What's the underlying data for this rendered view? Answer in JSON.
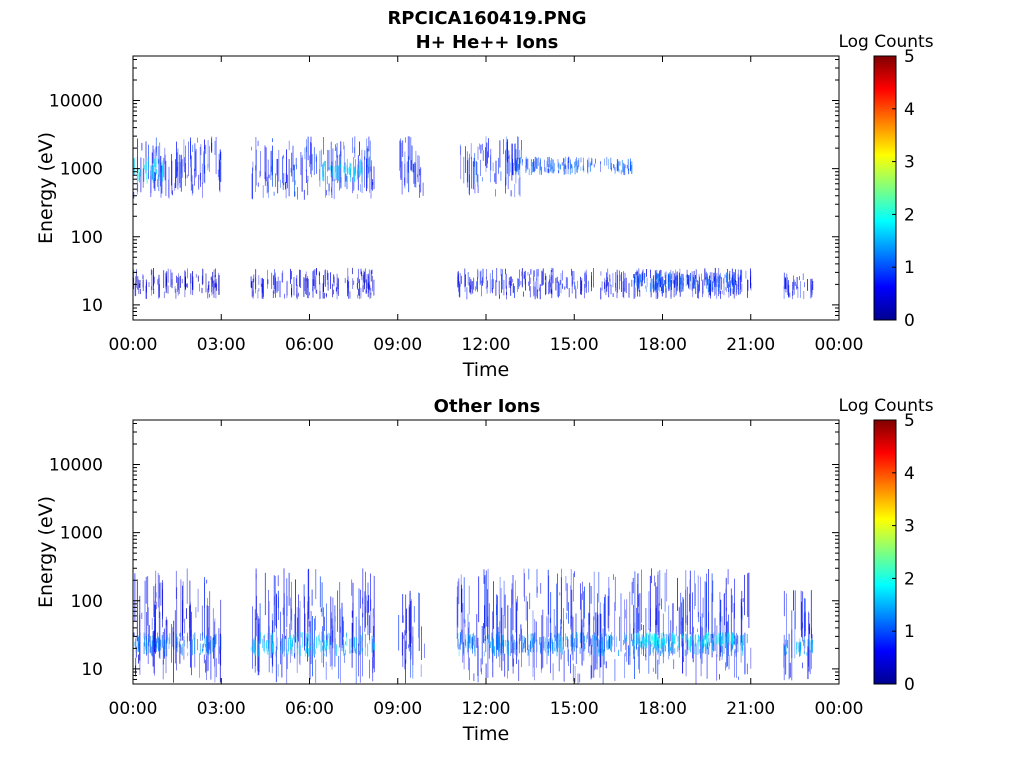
{
  "figure": {
    "title_line1": "RPCICA160419.PNG"
  },
  "chart_data": [
    {
      "type": "heatmap",
      "title": "H+ He++ Ions",
      "xlabel": "Time",
      "ylabel": "Energy (eV)",
      "x_ticks": [
        "00:00",
        "03:00",
        "06:00",
        "09:00",
        "12:00",
        "15:00",
        "18:00",
        "21:00",
        "00:00"
      ],
      "x_range_hours": [
        0,
        24
      ],
      "y_scale": "log",
      "y_range_ev": [
        6,
        45000
      ],
      "y_ticks": [
        {
          "value": 10,
          "label": "10"
        },
        {
          "value": 100,
          "label": "100"
        },
        {
          "value": 1000,
          "label": "1000"
        },
        {
          "value": 10000,
          "label": "10000"
        }
      ],
      "colorbar": {
        "label": "Log Counts",
        "min": 0,
        "max": 5,
        "ticks": [
          "0",
          "1",
          "2",
          "3",
          "4",
          "5"
        ],
        "colormap": "jet"
      },
      "data_gaps_hours": [
        [
          3.0,
          4.0
        ],
        [
          8.2,
          9.0
        ],
        [
          9.9,
          11.0
        ],
        [
          21.0,
          22.1
        ],
        [
          23.1,
          24.0
        ]
      ],
      "bands": [
        {
          "t": [
            0.0,
            3.0
          ],
          "e": [
            350,
            3000
          ],
          "level": 0.7
        },
        {
          "t": [
            0.0,
            1.0
          ],
          "e": [
            600,
            1500
          ],
          "level": 1.8
        },
        {
          "t": [
            0.0,
            3.0
          ],
          "e": [
            12,
            35
          ],
          "level": 0.4
        },
        {
          "t": [
            4.0,
            8.2
          ],
          "e": [
            350,
            3000
          ],
          "level": 0.8
        },
        {
          "t": [
            6.3,
            8.0
          ],
          "e": [
            600,
            1400
          ],
          "level": 1.6
        },
        {
          "t": [
            4.0,
            8.2
          ],
          "e": [
            12,
            35
          ],
          "level": 0.5
        },
        {
          "t": [
            9.0,
            9.9
          ],
          "e": [
            350,
            3000
          ],
          "level": 0.7
        },
        {
          "t": [
            11.0,
            13.2
          ],
          "e": [
            350,
            3000
          ],
          "level": 0.8
        },
        {
          "t": [
            12.8,
            17.0
          ],
          "e": [
            800,
            1500
          ],
          "level": 1.0
        },
        {
          "t": [
            11.0,
            21.0
          ],
          "e": [
            12,
            35
          ],
          "level": 0.6
        },
        {
          "t": [
            17.0,
            20.5
          ],
          "e": [
            15,
            30
          ],
          "level": 1.0
        },
        {
          "t": [
            22.1,
            23.1
          ],
          "e": [
            12,
            30
          ],
          "level": 0.6
        }
      ]
    },
    {
      "type": "heatmap",
      "title": "Other Ions",
      "xlabel": "Time",
      "ylabel": "Energy (eV)",
      "x_ticks": [
        "00:00",
        "03:00",
        "06:00",
        "09:00",
        "12:00",
        "15:00",
        "18:00",
        "21:00",
        "00:00"
      ],
      "x_range_hours": [
        0,
        24
      ],
      "y_scale": "log",
      "y_range_ev": [
        6,
        45000
      ],
      "y_ticks": [
        {
          "value": 10,
          "label": "10"
        },
        {
          "value": 100,
          "label": "100"
        },
        {
          "value": 1000,
          "label": "1000"
        },
        {
          "value": 10000,
          "label": "10000"
        }
      ],
      "colorbar": {
        "label": "Log Counts",
        "min": 0,
        "max": 5,
        "ticks": [
          "0",
          "1",
          "2",
          "3",
          "4",
          "5"
        ],
        "colormap": "jet"
      },
      "data_gaps_hours": [
        [
          3.0,
          4.0
        ],
        [
          8.2,
          9.0
        ],
        [
          9.9,
          11.0
        ],
        [
          21.0,
          22.1
        ],
        [
          23.1,
          24.0
        ]
      ],
      "bands": [
        {
          "t": [
            0.0,
            3.0
          ],
          "e": [
            6,
            300
          ],
          "level": 0.6
        },
        {
          "t": [
            0.0,
            3.0
          ],
          "e": [
            15,
            35
          ],
          "level": 1.2
        },
        {
          "t": [
            4.0,
            8.2
          ],
          "e": [
            6,
            300
          ],
          "level": 0.7
        },
        {
          "t": [
            4.0,
            8.2
          ],
          "e": [
            15,
            35
          ],
          "level": 1.6
        },
        {
          "t": [
            9.0,
            9.9
          ],
          "e": [
            6,
            200
          ],
          "level": 0.7
        },
        {
          "t": [
            11.0,
            21.0
          ],
          "e": [
            6,
            300
          ],
          "level": 0.7
        },
        {
          "t": [
            11.0,
            21.0
          ],
          "e": [
            15,
            35
          ],
          "level": 1.3
        },
        {
          "t": [
            17.0,
            20.5
          ],
          "e": [
            20,
            35
          ],
          "level": 1.8
        },
        {
          "t": [
            22.1,
            23.1
          ],
          "e": [
            6,
            150
          ],
          "level": 0.7
        },
        {
          "t": [
            22.1,
            23.1
          ],
          "e": [
            15,
            30
          ],
          "level": 1.4
        }
      ]
    }
  ]
}
